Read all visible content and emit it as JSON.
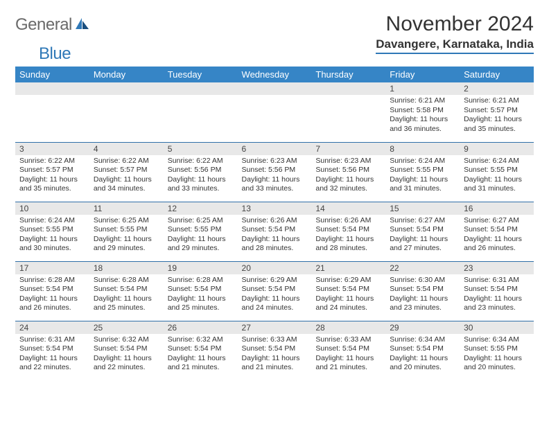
{
  "logo": {
    "text1": "General",
    "text2": "Blue"
  },
  "title": "November 2024",
  "location": "Davangere, Karnataka, India",
  "colors": {
    "header_bg": "#3685c6",
    "border": "#2f6fa8",
    "daynum_bg": "#e8e8e8",
    "logo_gray": "#6a6a6a",
    "logo_blue": "#2f78b7"
  },
  "days_of_week": [
    "Sunday",
    "Monday",
    "Tuesday",
    "Wednesday",
    "Thursday",
    "Friday",
    "Saturday"
  ],
  "weeks": [
    [
      {
        "empty": true
      },
      {
        "empty": true
      },
      {
        "empty": true
      },
      {
        "empty": true
      },
      {
        "empty": true
      },
      {
        "day": "1",
        "sunrise": "Sunrise: 6:21 AM",
        "sunset": "Sunset: 5:58 PM",
        "daylight": "Daylight: 11 hours and 36 minutes."
      },
      {
        "day": "2",
        "sunrise": "Sunrise: 6:21 AM",
        "sunset": "Sunset: 5:57 PM",
        "daylight": "Daylight: 11 hours and 35 minutes."
      }
    ],
    [
      {
        "day": "3",
        "sunrise": "Sunrise: 6:22 AM",
        "sunset": "Sunset: 5:57 PM",
        "daylight": "Daylight: 11 hours and 35 minutes."
      },
      {
        "day": "4",
        "sunrise": "Sunrise: 6:22 AM",
        "sunset": "Sunset: 5:57 PM",
        "daylight": "Daylight: 11 hours and 34 minutes."
      },
      {
        "day": "5",
        "sunrise": "Sunrise: 6:22 AM",
        "sunset": "Sunset: 5:56 PM",
        "daylight": "Daylight: 11 hours and 33 minutes."
      },
      {
        "day": "6",
        "sunrise": "Sunrise: 6:23 AM",
        "sunset": "Sunset: 5:56 PM",
        "daylight": "Daylight: 11 hours and 33 minutes."
      },
      {
        "day": "7",
        "sunrise": "Sunrise: 6:23 AM",
        "sunset": "Sunset: 5:56 PM",
        "daylight": "Daylight: 11 hours and 32 minutes."
      },
      {
        "day": "8",
        "sunrise": "Sunrise: 6:24 AM",
        "sunset": "Sunset: 5:55 PM",
        "daylight": "Daylight: 11 hours and 31 minutes."
      },
      {
        "day": "9",
        "sunrise": "Sunrise: 6:24 AM",
        "sunset": "Sunset: 5:55 PM",
        "daylight": "Daylight: 11 hours and 31 minutes."
      }
    ],
    [
      {
        "day": "10",
        "sunrise": "Sunrise: 6:24 AM",
        "sunset": "Sunset: 5:55 PM",
        "daylight": "Daylight: 11 hours and 30 minutes."
      },
      {
        "day": "11",
        "sunrise": "Sunrise: 6:25 AM",
        "sunset": "Sunset: 5:55 PM",
        "daylight": "Daylight: 11 hours and 29 minutes."
      },
      {
        "day": "12",
        "sunrise": "Sunrise: 6:25 AM",
        "sunset": "Sunset: 5:55 PM",
        "daylight": "Daylight: 11 hours and 29 minutes."
      },
      {
        "day": "13",
        "sunrise": "Sunrise: 6:26 AM",
        "sunset": "Sunset: 5:54 PM",
        "daylight": "Daylight: 11 hours and 28 minutes."
      },
      {
        "day": "14",
        "sunrise": "Sunrise: 6:26 AM",
        "sunset": "Sunset: 5:54 PM",
        "daylight": "Daylight: 11 hours and 28 minutes."
      },
      {
        "day": "15",
        "sunrise": "Sunrise: 6:27 AM",
        "sunset": "Sunset: 5:54 PM",
        "daylight": "Daylight: 11 hours and 27 minutes."
      },
      {
        "day": "16",
        "sunrise": "Sunrise: 6:27 AM",
        "sunset": "Sunset: 5:54 PM",
        "daylight": "Daylight: 11 hours and 26 minutes."
      }
    ],
    [
      {
        "day": "17",
        "sunrise": "Sunrise: 6:28 AM",
        "sunset": "Sunset: 5:54 PM",
        "daylight": "Daylight: 11 hours and 26 minutes."
      },
      {
        "day": "18",
        "sunrise": "Sunrise: 6:28 AM",
        "sunset": "Sunset: 5:54 PM",
        "daylight": "Daylight: 11 hours and 25 minutes."
      },
      {
        "day": "19",
        "sunrise": "Sunrise: 6:28 AM",
        "sunset": "Sunset: 5:54 PM",
        "daylight": "Daylight: 11 hours and 25 minutes."
      },
      {
        "day": "20",
        "sunrise": "Sunrise: 6:29 AM",
        "sunset": "Sunset: 5:54 PM",
        "daylight": "Daylight: 11 hours and 24 minutes."
      },
      {
        "day": "21",
        "sunrise": "Sunrise: 6:29 AM",
        "sunset": "Sunset: 5:54 PM",
        "daylight": "Daylight: 11 hours and 24 minutes."
      },
      {
        "day": "22",
        "sunrise": "Sunrise: 6:30 AM",
        "sunset": "Sunset: 5:54 PM",
        "daylight": "Daylight: 11 hours and 23 minutes."
      },
      {
        "day": "23",
        "sunrise": "Sunrise: 6:31 AM",
        "sunset": "Sunset: 5:54 PM",
        "daylight": "Daylight: 11 hours and 23 minutes."
      }
    ],
    [
      {
        "day": "24",
        "sunrise": "Sunrise: 6:31 AM",
        "sunset": "Sunset: 5:54 PM",
        "daylight": "Daylight: 11 hours and 22 minutes."
      },
      {
        "day": "25",
        "sunrise": "Sunrise: 6:32 AM",
        "sunset": "Sunset: 5:54 PM",
        "daylight": "Daylight: 11 hours and 22 minutes."
      },
      {
        "day": "26",
        "sunrise": "Sunrise: 6:32 AM",
        "sunset": "Sunset: 5:54 PM",
        "daylight": "Daylight: 11 hours and 21 minutes."
      },
      {
        "day": "27",
        "sunrise": "Sunrise: 6:33 AM",
        "sunset": "Sunset: 5:54 PM",
        "daylight": "Daylight: 11 hours and 21 minutes."
      },
      {
        "day": "28",
        "sunrise": "Sunrise: 6:33 AM",
        "sunset": "Sunset: 5:54 PM",
        "daylight": "Daylight: 11 hours and 21 minutes."
      },
      {
        "day": "29",
        "sunrise": "Sunrise: 6:34 AM",
        "sunset": "Sunset: 5:54 PM",
        "daylight": "Daylight: 11 hours and 20 minutes."
      },
      {
        "day": "30",
        "sunrise": "Sunrise: 6:34 AM",
        "sunset": "Sunset: 5:55 PM",
        "daylight": "Daylight: 11 hours and 20 minutes."
      }
    ]
  ]
}
